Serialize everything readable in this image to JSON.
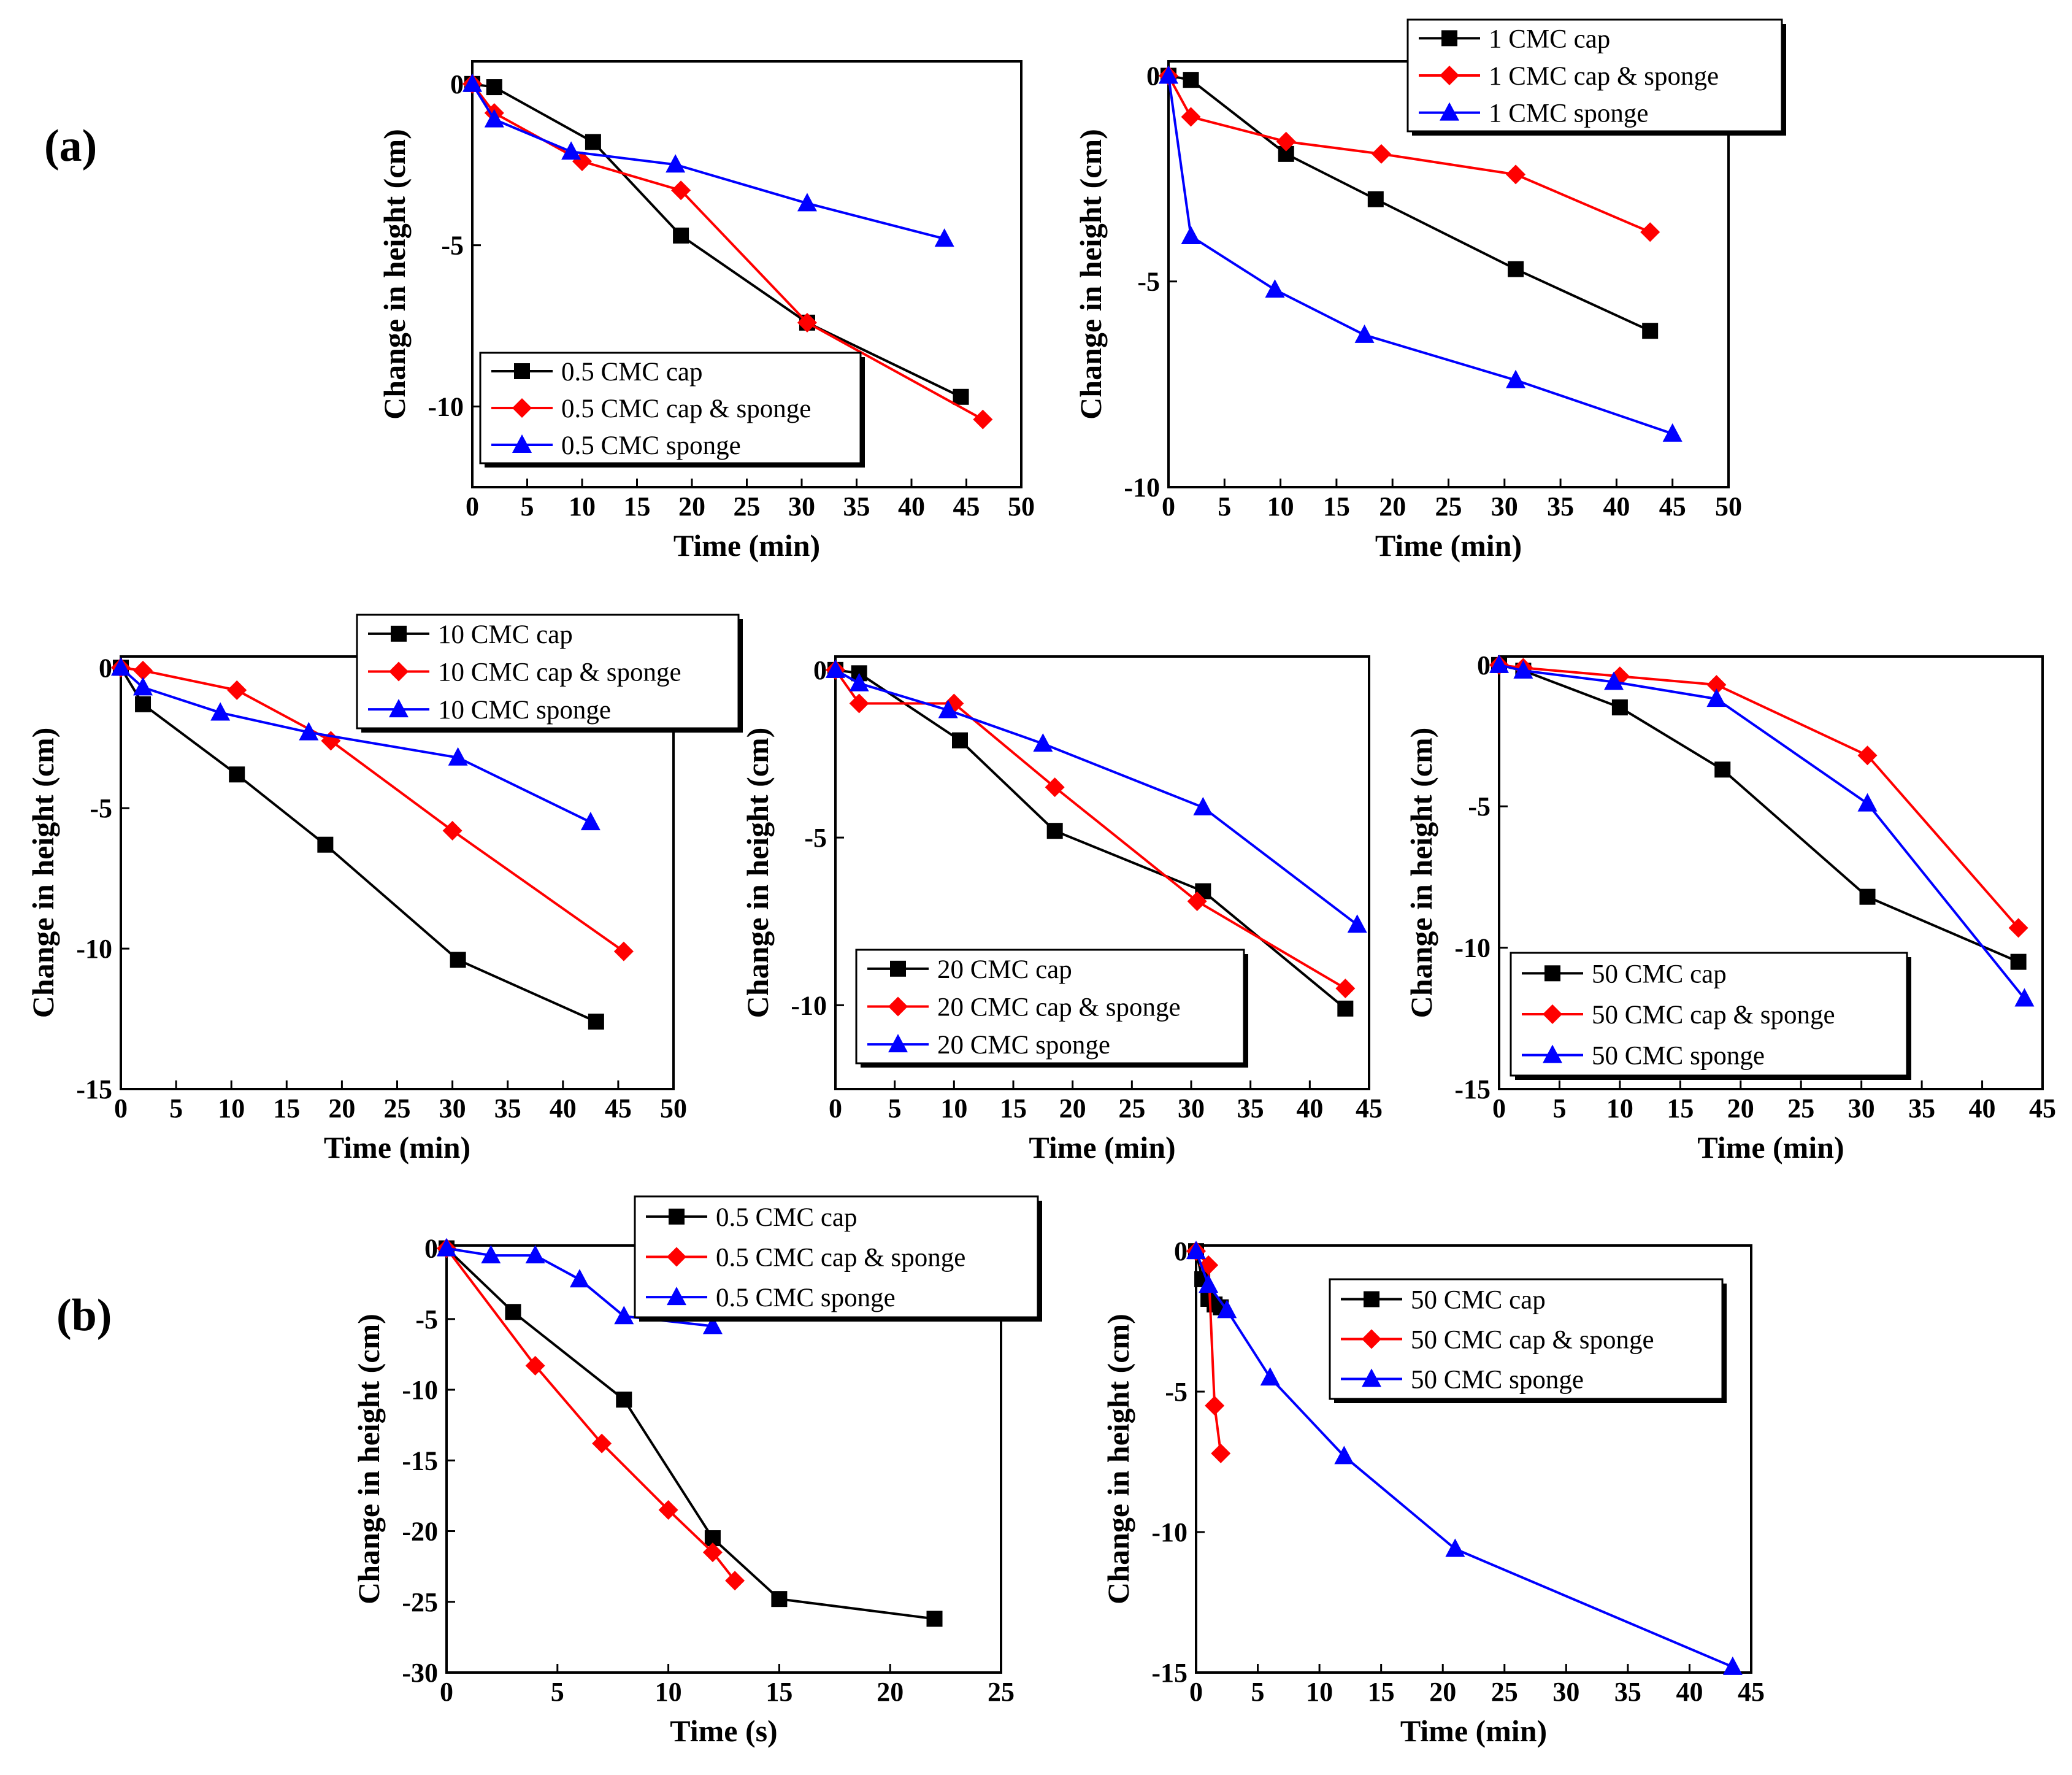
{
  "figure": {
    "panel_a_label": "(a)",
    "panel_b_label": "(b)",
    "colors": {
      "black": "#000000",
      "red": "#ff0000",
      "blue": "#0000ff"
    }
  },
  "chart_data": [
    {
      "type": "line",
      "xlabel": "Time (min)",
      "ylabel": "Change in height (cm)",
      "xlim": [
        0,
        50
      ],
      "ylim": [
        -12.5,
        0.7
      ],
      "xticks": [
        0,
        5,
        10,
        15,
        20,
        25,
        30,
        35,
        40,
        45,
        50
      ],
      "yticks": [
        0,
        -5,
        -10
      ],
      "legend_position": "bottom-right",
      "series": [
        {
          "name": "0.5 CMC cap",
          "color": "#000000",
          "marker": "square",
          "x": [
            0,
            2,
            11,
            19,
            30.5,
            44.5
          ],
          "y": [
            0,
            -0.1,
            -1.8,
            -4.7,
            -7.4,
            -9.7
          ]
        },
        {
          "name": "0.5 CMC cap & sponge",
          "color": "#ff0000",
          "marker": "diamond",
          "x": [
            0,
            2,
            10,
            19,
            30.5,
            46.5
          ],
          "y": [
            0,
            -0.9,
            -2.4,
            -3.3,
            -7.4,
            -10.4
          ]
        },
        {
          "name": "0.5 CMC sponge",
          "color": "#0000ff",
          "marker": "triangle",
          "x": [
            0,
            2,
            9,
            18.5,
            30.5,
            43
          ],
          "y": [
            0,
            -1.1,
            -2.1,
            -2.5,
            -3.7,
            -4.8
          ]
        }
      ]
    },
    {
      "type": "line",
      "xlabel": "Time (min)",
      "ylabel": "Change in height (cm)",
      "xlim": [
        0,
        50
      ],
      "ylim": [
        -10,
        0.35
      ],
      "xticks": [
        0,
        5,
        10,
        15,
        20,
        25,
        30,
        35,
        40,
        45,
        50
      ],
      "yticks": [
        0,
        -5,
        -10
      ],
      "legend_position": "top-right",
      "series": [
        {
          "name": "1 CMC cap",
          "color": "#000000",
          "marker": "square",
          "x": [
            0,
            2,
            10.5,
            18.5,
            31,
            43
          ],
          "y": [
            0,
            -0.1,
            -1.9,
            -3.0,
            -4.7,
            -6.2
          ]
        },
        {
          "name": "1 CMC cap & sponge",
          "color": "#ff0000",
          "marker": "diamond",
          "x": [
            0,
            2,
            10.5,
            19,
            31,
            43
          ],
          "y": [
            0,
            -1.0,
            -1.6,
            -1.9,
            -2.4,
            -3.8
          ]
        },
        {
          "name": "1 CMC sponge",
          "color": "#0000ff",
          "marker": "triangle",
          "x": [
            0,
            2,
            9.5,
            17.5,
            31,
            45
          ],
          "y": [
            0,
            -3.9,
            -5.2,
            -6.3,
            -7.4,
            -8.7
          ]
        }
      ]
    },
    {
      "type": "line",
      "xlabel": "Time (min)",
      "ylabel": "Change in height (cm)",
      "xlim": [
        0,
        50
      ],
      "ylim": [
        -15,
        0.4
      ],
      "xticks": [
        0,
        5,
        10,
        15,
        20,
        25,
        30,
        35,
        40,
        45,
        50
      ],
      "yticks": [
        0,
        -5,
        -10,
        -15
      ],
      "legend_position": "top-right",
      "series": [
        {
          "name": "10 CMC cap",
          "color": "#000000",
          "marker": "square",
          "x": [
            0,
            2,
            10.5,
            18.5,
            30.5,
            43
          ],
          "y": [
            0,
            -1.3,
            -3.8,
            -6.3,
            -10.4,
            -12.6
          ]
        },
        {
          "name": "10 CMC cap & sponge",
          "color": "#ff0000",
          "marker": "diamond",
          "x": [
            0,
            2,
            10.5,
            19,
            30,
            45.5
          ],
          "y": [
            0,
            -0.1,
            -0.8,
            -2.6,
            -5.8,
            -10.1
          ]
        },
        {
          "name": "10 CMC sponge",
          "color": "#0000ff",
          "marker": "triangle",
          "x": [
            0,
            2,
            9,
            17,
            30.5,
            42.5
          ],
          "y": [
            0,
            -0.7,
            -1.6,
            -2.3,
            -3.2,
            -5.5
          ]
        }
      ]
    },
    {
      "type": "line",
      "xlabel": "Time (min)",
      "ylabel": "Change in height (cm)",
      "xlim": [
        0,
        45
      ],
      "ylim": [
        -12.5,
        0.4
      ],
      "xticks": [
        0,
        5,
        10,
        15,
        20,
        25,
        30,
        35,
        40,
        45
      ],
      "yticks": [
        0,
        -5,
        -10
      ],
      "legend_position": "bottom-left",
      "series": [
        {
          "name": "20 CMC cap",
          "color": "#000000",
          "marker": "square",
          "x": [
            0,
            2,
            10.5,
            18.5,
            31,
            43
          ],
          "y": [
            0,
            -0.1,
            -2.1,
            -4.8,
            -6.6,
            -10.1
          ]
        },
        {
          "name": "20 CMC cap & sponge",
          "color": "#ff0000",
          "marker": "diamond",
          "x": [
            0,
            2,
            10,
            18.5,
            30.5,
            43
          ],
          "y": [
            0,
            -1.0,
            -1.0,
            -3.5,
            -6.9,
            -9.5
          ]
        },
        {
          "name": "20 CMC sponge",
          "color": "#0000ff",
          "marker": "triangle",
          "x": [
            0,
            2,
            9.5,
            17.5,
            31,
            44
          ],
          "y": [
            0,
            -0.4,
            -1.2,
            -2.2,
            -4.1,
            -7.6
          ]
        }
      ]
    },
    {
      "type": "line",
      "xlabel": "Time (min)",
      "ylabel": "Change in height (cm)",
      "xlim": [
        0,
        45
      ],
      "ylim": [
        -15,
        0.3
      ],
      "xticks": [
        0,
        5,
        10,
        15,
        20,
        25,
        30,
        35,
        40,
        45
      ],
      "yticks": [
        0,
        -5,
        -10,
        -15
      ],
      "legend_position": "bottom-left",
      "series": [
        {
          "name": "50 CMC cap",
          "color": "#000000",
          "marker": "square",
          "x": [
            0,
            2,
            10,
            18.5,
            30.5,
            43
          ],
          "y": [
            0,
            -0.2,
            -1.5,
            -3.7,
            -8.2,
            -10.5
          ]
        },
        {
          "name": "50 CMC cap & sponge",
          "color": "#ff0000",
          "marker": "diamond",
          "x": [
            0,
            2,
            10,
            18,
            30.5,
            43
          ],
          "y": [
            0,
            -0.1,
            -0.4,
            -0.7,
            -3.2,
            -9.3
          ]
        },
        {
          "name": "50 CMC sponge",
          "color": "#0000ff",
          "marker": "triangle",
          "x": [
            0,
            2,
            9.5,
            18,
            30.5,
            43.5
          ],
          "y": [
            0,
            -0.2,
            -0.6,
            -1.2,
            -4.9,
            -11.8
          ]
        }
      ]
    },
    {
      "type": "line",
      "xlabel": "Time (s)",
      "ylabel": "Change in height (cm)",
      "xlim": [
        0,
        25
      ],
      "ylim": [
        -30,
        0.2
      ],
      "xticks": [
        0,
        5,
        10,
        15,
        20,
        25
      ],
      "yticks": [
        0,
        -5,
        -10,
        -15,
        -20,
        -25,
        -30
      ],
      "legend_position": "top-right",
      "series": [
        {
          "name": "0.5 CMC cap",
          "color": "#000000",
          "marker": "square",
          "x": [
            0,
            3,
            8,
            12,
            15,
            22
          ],
          "y": [
            0,
            -4.5,
            -10.7,
            -20.5,
            -24.8,
            -26.2
          ]
        },
        {
          "name": "0.5 CMC cap & sponge",
          "color": "#ff0000",
          "marker": "diamond",
          "x": [
            0,
            4,
            7,
            10,
            12,
            13
          ],
          "y": [
            0,
            -8.3,
            -13.8,
            -18.5,
            -21.5,
            -23.5
          ]
        },
        {
          "name": "0.5 CMC sponge",
          "color": "#0000ff",
          "marker": "triangle",
          "x": [
            0,
            2,
            4,
            6,
            8,
            12
          ],
          "y": [
            0,
            -0.5,
            -0.5,
            -2.2,
            -4.8,
            -5.5
          ]
        }
      ]
    },
    {
      "type": "line",
      "xlabel": "Time (min)",
      "ylabel": "Change in height (cm)",
      "xlim": [
        0,
        45
      ],
      "ylim": [
        -15,
        0.2
      ],
      "xticks": [
        0,
        5,
        10,
        15,
        20,
        25,
        30,
        35,
        40,
        45
      ],
      "yticks": [
        0,
        -5,
        -10,
        -15
      ],
      "legend_position": "top-right",
      "series": [
        {
          "name": "50 CMC cap",
          "color": "#000000",
          "marker": "square",
          "x": [
            0,
            0.5,
            1,
            1.5,
            2
          ],
          "y": [
            0,
            -1.0,
            -1.7,
            -1.9,
            -2.0
          ]
        },
        {
          "name": "50 CMC cap & sponge",
          "color": "#ff0000",
          "marker": "diamond",
          "x": [
            0,
            1,
            1.5,
            2
          ],
          "y": [
            0,
            -0.5,
            -5.5,
            -7.2
          ]
        },
        {
          "name": "50 CMC sponge",
          "color": "#0000ff",
          "marker": "triangle",
          "x": [
            0,
            1,
            2.5,
            6,
            12,
            21,
            43.5
          ],
          "y": [
            0,
            -1.2,
            -2.1,
            -4.5,
            -7.3,
            -10.6,
            -14.8
          ]
        }
      ]
    }
  ]
}
